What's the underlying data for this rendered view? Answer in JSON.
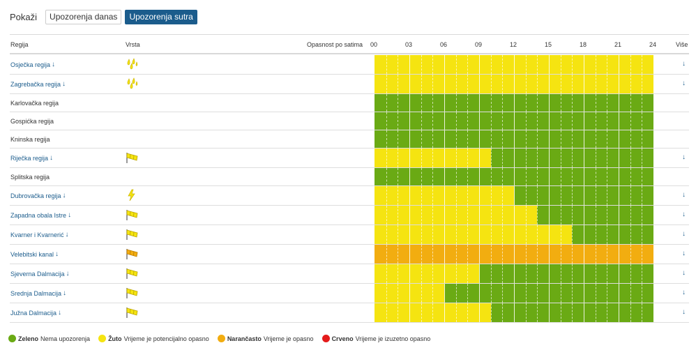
{
  "toolbar": {
    "show_label": "Pokaži",
    "tabs": [
      {
        "label": "Upozorenja danas",
        "active": false
      },
      {
        "label": "Upozorenja sutra",
        "active": true
      }
    ]
  },
  "table": {
    "headers": {
      "region": "Regija",
      "type": "Vrsta",
      "hazard": "Opasnost po satima",
      "more": "Više"
    },
    "hour_ticks": [
      "00",
      "03",
      "06",
      "09",
      "12",
      "15",
      "18",
      "21",
      "24"
    ],
    "rows": [
      {
        "name": "Osječka regija",
        "link": true,
        "icon": "rain-icon",
        "segments": [
          {
            "level": "yellow",
            "from": 0,
            "to": 24
          }
        ]
      },
      {
        "name": "Zagrebačka regija",
        "link": true,
        "icon": "rain-icon",
        "segments": [
          {
            "level": "yellow",
            "from": 0,
            "to": 24
          }
        ]
      },
      {
        "name": "Karlovačka regija",
        "link": false,
        "icon": "",
        "segments": [
          {
            "level": "green",
            "from": 0,
            "to": 24
          }
        ]
      },
      {
        "name": "Gospićka regija",
        "link": false,
        "icon": "",
        "segments": [
          {
            "level": "green",
            "from": 0,
            "to": 24
          }
        ]
      },
      {
        "name": "Kninska regija",
        "link": false,
        "icon": "",
        "segments": [
          {
            "level": "green",
            "from": 0,
            "to": 24
          }
        ]
      },
      {
        "name": "Riječka regija",
        "link": true,
        "icon": "wind-icon",
        "segments": [
          {
            "level": "yellow",
            "from": 0,
            "to": 10
          },
          {
            "level": "green",
            "from": 10,
            "to": 24
          }
        ]
      },
      {
        "name": "Splitska regija",
        "link": false,
        "icon": "",
        "segments": [
          {
            "level": "green",
            "from": 0,
            "to": 24
          }
        ]
      },
      {
        "name": "Dubrovačka regija",
        "link": true,
        "icon": "lightning-icon",
        "segments": [
          {
            "level": "yellow",
            "from": 0,
            "to": 12
          },
          {
            "level": "green",
            "from": 12,
            "to": 24
          }
        ]
      },
      {
        "name": "Zapadna obala Istre",
        "link": true,
        "icon": "wind-icon",
        "segments": [
          {
            "level": "yellow",
            "from": 0,
            "to": 14
          },
          {
            "level": "green",
            "from": 14,
            "to": 24
          }
        ]
      },
      {
        "name": "Kvarner i Kvarnerić",
        "link": true,
        "icon": "wind-icon",
        "segments": [
          {
            "level": "yellow",
            "from": 0,
            "to": 17
          },
          {
            "level": "green",
            "from": 17,
            "to": 24
          }
        ]
      },
      {
        "name": "Velebitski kanal",
        "link": true,
        "icon": "wind-icon-orange",
        "segments": [
          {
            "level": "orange",
            "from": 0,
            "to": 24
          }
        ]
      },
      {
        "name": "Sjeverna Dalmacija",
        "link": true,
        "icon": "wind-icon",
        "segments": [
          {
            "level": "yellow",
            "from": 0,
            "to": 9
          },
          {
            "level": "green",
            "from": 9,
            "to": 24
          }
        ]
      },
      {
        "name": "Srednja Dalmacija",
        "link": true,
        "icon": "wind-icon",
        "segments": [
          {
            "level": "yellow",
            "from": 0,
            "to": 6
          },
          {
            "level": "green",
            "from": 6,
            "to": 24
          }
        ]
      },
      {
        "name": "Južna Dalmacija",
        "link": true,
        "icon": "wind-icon",
        "segments": [
          {
            "level": "yellow",
            "from": 0,
            "to": 10
          },
          {
            "level": "green",
            "from": 10,
            "to": 24
          }
        ]
      }
    ]
  },
  "legend": [
    {
      "level": "green",
      "name": "Zeleno",
      "desc": "Nema upozorenja"
    },
    {
      "level": "yellow",
      "name": "Žuto",
      "desc": "Vrijeme je potencijalno opasno"
    },
    {
      "level": "orange",
      "name": "Narančasto",
      "desc": "Vrijeme je opasno"
    },
    {
      "level": "red",
      "name": "Crveno",
      "desc": "Vrijeme je izuzetno opasno"
    }
  ],
  "colors": {
    "green": "#6aaa14",
    "yellow": "#f5e411",
    "orange": "#f2ad10",
    "red": "#e41b1b",
    "link": "#1b5c8c"
  }
}
